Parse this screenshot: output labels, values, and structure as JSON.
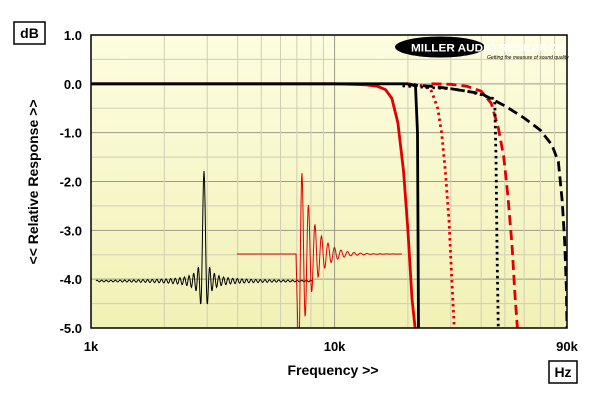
{
  "chart_data": {
    "type": "line",
    "xlabel": "Frequency >>",
    "ylabel": "<< Relative Response >>",
    "x_unit": "Hz",
    "y_unit": "dB",
    "x_scale": "log",
    "xlim": [
      1000,
      90000
    ],
    "ylim": [
      -5.0,
      1.0
    ],
    "x_ticks": [
      "1k",
      "10k",
      "90k"
    ],
    "y_ticks": [
      "1.0",
      "0.0",
      "-1.0",
      "-2.0",
      "-3.0",
      "-4.0",
      "-5.0"
    ],
    "grid": true,
    "logo": {
      "brand": "MILLER AUDIO RESEARCH",
      "tagline": "Getting the measure of sound quality"
    },
    "series": [
      {
        "color": "#e00000",
        "style": "solid",
        "x": [
          1000,
          10000,
          12000,
          13500,
          15000,
          16200,
          17200,
          18200,
          19200,
          20000,
          20800,
          21400
        ],
        "y": [
          0.0,
          0.0,
          -0.01,
          -0.02,
          -0.05,
          -0.12,
          -0.3,
          -0.8,
          -1.8,
          -3.0,
          -4.4,
          -5.0
        ]
      },
      {
        "color": "#000000",
        "style": "solid",
        "x": [
          1000,
          15000,
          20000,
          21000,
          21500,
          21900,
          22100
        ],
        "y": [
          0.0,
          0.0,
          0.0,
          -0.02,
          -0.05,
          -1.0,
          -5.0
        ]
      },
      {
        "color": "#e00000",
        "style": "dotted",
        "x": [
          20000,
          22000,
          23500,
          25000,
          26500,
          27500,
          28500,
          29500,
          30300,
          31000
        ],
        "y": [
          0.0,
          -0.02,
          -0.05,
          -0.15,
          -0.5,
          -1.0,
          -1.8,
          -2.8,
          -4.0,
          -5.0
        ]
      },
      {
        "color": "#e00000",
        "style": "dashed",
        "x": [
          25000,
          30000,
          35000,
          40000,
          44000,
          47000,
          49500,
          51500,
          53500,
          55000,
          56300
        ],
        "y": [
          0.0,
          -0.01,
          -0.05,
          -0.15,
          -0.4,
          -0.9,
          -1.5,
          -2.3,
          -3.3,
          -4.3,
          -5.0
        ]
      },
      {
        "color": "#000000",
        "style": "dotted",
        "x": [
          19000,
          25000,
          30000,
          35000,
          40000,
          43000,
          45000,
          45500,
          46000,
          46500,
          47000
        ],
        "y": [
          -0.04,
          -0.08,
          -0.1,
          -0.15,
          -0.22,
          -0.28,
          -0.3,
          -0.4,
          -1.5,
          -3.5,
          -5.0
        ]
      },
      {
        "color": "#000000",
        "style": "dashed",
        "x": [
          20000,
          25000,
          30000,
          40000,
          50000,
          60000,
          70000,
          78000,
          83000,
          86000,
          88000,
          89500,
          90000
        ],
        "y": [
          -0.02,
          -0.05,
          -0.1,
          -0.2,
          -0.45,
          -0.7,
          -0.95,
          -1.25,
          -1.6,
          -2.4,
          -3.2,
          -4.2,
          -5.0
        ]
      }
    ]
  }
}
